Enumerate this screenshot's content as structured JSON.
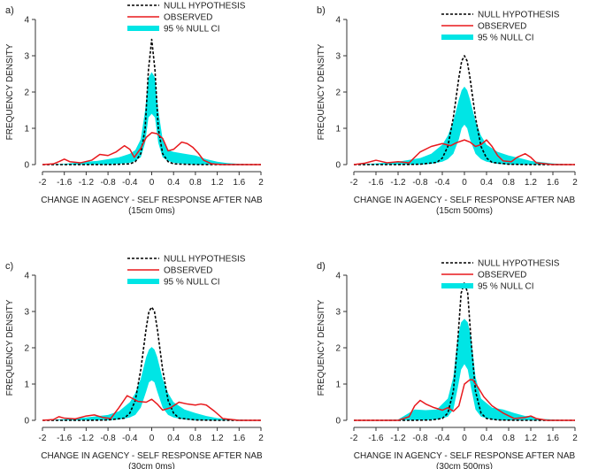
{
  "chart_data": [
    {
      "type": "line",
      "panel_label": "a)",
      "xlabel": "CHANGE IN AGENCY - SELF RESPONSE AFTER NAB",
      "xlabel2": "(15cm 0ms)",
      "ylabel": "FREQUENCY DENSITY",
      "xlim": [
        -2,
        2
      ],
      "ylim": [
        0,
        4
      ],
      "x_ticks": [
        "-2",
        "-1.6",
        "-1.2",
        "-0.8",
        "-0.4",
        "0",
        "0.4",
        "0.8",
        "1.2",
        "1.6",
        "2"
      ],
      "y_ticks": [
        "0",
        "1",
        "2",
        "3",
        "4"
      ],
      "legend": [
        "NULL HYPOTHESIS",
        "OBSERVED",
        "95 % NULL CI"
      ],
      "series": [
        {
          "name": "NULL HYPOTHESIS",
          "color": "#000000",
          "style": "dashed",
          "x": [
            -2,
            -1.6,
            -0.8,
            -0.4,
            -0.3,
            -0.2,
            -0.12,
            -0.06,
            0,
            0.06,
            0.12,
            0.2,
            0.3,
            0.4,
            0.8,
            1.6,
            2
          ],
          "y": [
            0,
            0,
            0,
            0.02,
            0.08,
            0.3,
            1.0,
            2.6,
            3.45,
            2.6,
            1.0,
            0.3,
            0.08,
            0.02,
            0,
            0,
            0
          ]
        },
        {
          "name": "OBSERVED",
          "color": "#e8181c",
          "style": "solid",
          "x": [
            -2,
            -1.8,
            -1.7,
            -1.6,
            -1.5,
            -1.3,
            -1.1,
            -0.95,
            -0.8,
            -0.65,
            -0.5,
            -0.4,
            -0.32,
            -0.2,
            -0.1,
            0,
            0.1,
            0.2,
            0.3,
            0.4,
            0.55,
            0.65,
            0.75,
            0.85,
            0.95,
            1.1,
            1.3,
            1.6,
            2
          ],
          "y": [
            0,
            0.02,
            0.08,
            0.15,
            0.08,
            0.05,
            0.12,
            0.28,
            0.25,
            0.35,
            0.52,
            0.42,
            0.2,
            0.45,
            0.75,
            0.88,
            0.85,
            0.72,
            0.38,
            0.42,
            0.62,
            0.58,
            0.48,
            0.32,
            0.12,
            0.02,
            0,
            0,
            0
          ]
        },
        {
          "name": "95 % NULL CI",
          "color": "#00e5e5",
          "style": "band",
          "x": [
            -2,
            -1.6,
            -1.4,
            -1.2,
            -1.0,
            -0.8,
            -0.6,
            -0.4,
            -0.3,
            -0.2,
            -0.12,
            -0.06,
            0,
            0.06,
            0.12,
            0.2,
            0.3,
            0.4,
            0.6,
            0.8,
            1.0,
            1.2,
            1.4,
            1.6,
            2
          ],
          "lower": [
            0,
            0,
            0,
            0,
            0,
            0,
            0.02,
            0.05,
            0.1,
            0.2,
            0.6,
            1.3,
            1.4,
            1.3,
            0.6,
            0.2,
            0.1,
            0.05,
            0.02,
            0,
            0,
            0,
            0,
            0,
            0
          ],
          "upper": [
            0,
            0.02,
            0.05,
            0.08,
            0.1,
            0.15,
            0.2,
            0.3,
            0.4,
            0.7,
            1.5,
            2.4,
            2.55,
            2.4,
            1.5,
            0.7,
            0.4,
            0.35,
            0.3,
            0.25,
            0.15,
            0.08,
            0.04,
            0.02,
            0
          ]
        }
      ]
    },
    {
      "type": "line",
      "panel_label": "b)",
      "xlabel": "CHANGE IN AGENCY - SELF RESPONSE AFTER NAB",
      "xlabel2": "(15cm 500ms)",
      "ylabel": "FREQUENCY DENSITY",
      "xlim": [
        -2,
        2
      ],
      "ylim": [
        0,
        4
      ],
      "x_ticks": [
        "-2",
        "-1.6",
        "-1.2",
        "-0.8",
        "-0.4",
        "0",
        "0.4",
        "0.8",
        "1.2",
        "1.6",
        "2"
      ],
      "y_ticks": [
        "0",
        "1",
        "2",
        "3",
        "4"
      ],
      "legend": [
        "NULL HYPOTHESIS",
        "OBSERVED",
        "95 % NULL CI"
      ],
      "series": [
        {
          "name": "NULL HYPOTHESIS",
          "color": "#000000",
          "style": "dashed",
          "x": [
            -2,
            -1.2,
            -0.8,
            -0.5,
            -0.4,
            -0.3,
            -0.2,
            -0.1,
            -0.05,
            0,
            0.05,
            0.1,
            0.2,
            0.3,
            0.4,
            0.5,
            0.8,
            1.2,
            2
          ],
          "y": [
            0,
            0,
            0.01,
            0.06,
            0.18,
            0.5,
            1.3,
            2.4,
            2.85,
            3.0,
            2.85,
            2.4,
            1.3,
            0.5,
            0.18,
            0.06,
            0.01,
            0,
            0
          ]
        },
        {
          "name": "OBSERVED",
          "color": "#e8181c",
          "style": "solid",
          "x": [
            -2,
            -1.8,
            -1.6,
            -1.4,
            -1.2,
            -1.0,
            -0.8,
            -0.6,
            -0.4,
            -0.25,
            -0.15,
            0,
            0.1,
            0.2,
            0.3,
            0.4,
            0.5,
            0.6,
            0.7,
            0.85,
            0.95,
            1.1,
            1.2,
            1.3,
            1.6,
            2
          ],
          "y": [
            0,
            0.04,
            0.12,
            0.05,
            0.08,
            0.05,
            0.35,
            0.5,
            0.58,
            0.52,
            0.6,
            0.68,
            0.62,
            0.5,
            0.55,
            0.68,
            0.5,
            0.25,
            0.1,
            0.08,
            0.2,
            0.3,
            0.2,
            0.05,
            0,
            0
          ]
        },
        {
          "name": "95 % NULL CI",
          "color": "#00e5e5",
          "style": "band",
          "x": [
            -2,
            -1.6,
            -1.2,
            -0.8,
            -0.6,
            -0.4,
            -0.3,
            -0.2,
            -0.1,
            -0.05,
            0,
            0.05,
            0.1,
            0.2,
            0.3,
            0.4,
            0.6,
            0.8,
            1.0,
            1.2,
            1.6,
            2
          ],
          "lower": [
            0,
            0,
            0,
            0,
            0.02,
            0.08,
            0.15,
            0.3,
            0.7,
            1.0,
            1.1,
            1.0,
            0.7,
            0.3,
            0.15,
            0.08,
            0.02,
            0,
            0,
            0,
            0,
            0
          ],
          "upper": [
            0,
            0.03,
            0.08,
            0.18,
            0.3,
            0.55,
            0.8,
            1.2,
            1.8,
            2.05,
            2.15,
            2.05,
            1.8,
            1.2,
            0.8,
            0.55,
            0.35,
            0.25,
            0.18,
            0.1,
            0.03,
            0
          ]
        }
      ]
    },
    {
      "type": "line",
      "panel_label": "c)",
      "xlabel": "CHANGE IN AGENCY - SELF RESPONSE AFTER NAB",
      "xlabel2": "(30cm 0ms)",
      "ylabel": "FREQUENCY DENSITY",
      "xlim": [
        -2,
        2
      ],
      "ylim": [
        0,
        4
      ],
      "x_ticks": [
        "-2",
        "-1.6",
        "-1.2",
        "-0.8",
        "-0.4",
        "0",
        "0.4",
        "0.8",
        "1.2",
        "1.6",
        "2"
      ],
      "y_ticks": [
        "0",
        "1",
        "2",
        "3",
        "4"
      ],
      "legend": [
        "NULL HYPOTHESIS",
        "OBSERVED",
        "95 % NULL CI"
      ],
      "series": [
        {
          "name": "NULL HYPOTHESIS",
          "color": "#000000",
          "style": "dashed",
          "x": [
            -2,
            -1.2,
            -0.8,
            -0.5,
            -0.4,
            -0.3,
            -0.2,
            -0.1,
            -0.05,
            0,
            0.05,
            0.1,
            0.2,
            0.3,
            0.4,
            0.5,
            0.8,
            1.2,
            2
          ],
          "y": [
            0,
            0,
            0.01,
            0.06,
            0.2,
            0.55,
            1.4,
            2.55,
            3.0,
            3.12,
            3.0,
            2.55,
            1.4,
            0.55,
            0.2,
            0.06,
            0.01,
            0,
            0
          ]
        },
        {
          "name": "OBSERVED",
          "color": "#e8181c",
          "style": "solid",
          "x": [
            -2,
            -1.8,
            -1.7,
            -1.6,
            -1.4,
            -1.2,
            -1.05,
            -0.9,
            -0.75,
            -0.6,
            -0.45,
            -0.35,
            -0.25,
            -0.1,
            0,
            0.1,
            0.2,
            0.35,
            0.5,
            0.65,
            0.8,
            0.9,
            1.0,
            1.15,
            1.3,
            1.6,
            2
          ],
          "y": [
            0,
            0.02,
            0.1,
            0.06,
            0.04,
            0.12,
            0.15,
            0.08,
            0.05,
            0.35,
            0.68,
            0.6,
            0.52,
            0.5,
            0.58,
            0.45,
            0.28,
            0.35,
            0.5,
            0.45,
            0.42,
            0.45,
            0.42,
            0.25,
            0.05,
            0,
            0
          ]
        },
        {
          "name": "95 % NULL CI",
          "color": "#00e5e5",
          "style": "band",
          "x": [
            -2,
            -1.6,
            -1.2,
            -0.8,
            -0.6,
            -0.4,
            -0.3,
            -0.2,
            -0.1,
            -0.05,
            0,
            0.05,
            0.1,
            0.2,
            0.3,
            0.4,
            0.6,
            0.8,
            1.0,
            1.2,
            1.6,
            2
          ],
          "lower": [
            0,
            0,
            0,
            0,
            0.02,
            0.08,
            0.15,
            0.35,
            0.8,
            1.05,
            1.1,
            1.05,
            0.8,
            0.35,
            0.15,
            0.08,
            0.02,
            0,
            0,
            0,
            0,
            0
          ],
          "upper": [
            0,
            0.03,
            0.08,
            0.15,
            0.25,
            0.5,
            0.75,
            1.15,
            1.75,
            1.95,
            2.02,
            1.95,
            1.75,
            1.15,
            0.75,
            0.5,
            0.3,
            0.2,
            0.12,
            0.06,
            0.02,
            0
          ]
        }
      ]
    },
    {
      "type": "line",
      "panel_label": "d)",
      "xlabel": "CHANGE IN AGENCY - SELF RESPONSE AFTER NAB",
      "xlabel2": "(30cm 500ms)",
      "ylabel": "FREQUENCY DENSITY",
      "xlim": [
        -2,
        2
      ],
      "ylim": [
        0,
        4
      ],
      "x_ticks": [
        "-2",
        "-1.6",
        "-1.2",
        "-0.8",
        "-0.4",
        "0",
        "0.4",
        "0.8",
        "1.2",
        "1.6",
        "2"
      ],
      "y_ticks": [
        "0",
        "1",
        "2",
        "3",
        "4"
      ],
      "legend": [
        "NULL HYPOTHESIS",
        "OBSERVED",
        "95 % NULL CI"
      ],
      "series": [
        {
          "name": "NULL HYPOTHESIS",
          "color": "#000000",
          "style": "dashed",
          "x": [
            -2,
            -1.0,
            -0.6,
            -0.4,
            -0.3,
            -0.2,
            -0.12,
            -0.06,
            0,
            0.06,
            0.12,
            0.2,
            0.3,
            0.4,
            0.6,
            1.0,
            2
          ],
          "y": [
            0,
            0,
            0.01,
            0.05,
            0.2,
            0.8,
            2.2,
            3.5,
            3.8,
            3.5,
            2.2,
            0.8,
            0.2,
            0.05,
            0.01,
            0,
            0
          ]
        },
        {
          "name": "OBSERVED",
          "color": "#e8181c",
          "style": "solid",
          "x": [
            -2,
            -1.2,
            -1.0,
            -0.9,
            -0.8,
            -0.7,
            -0.55,
            -0.4,
            -0.3,
            -0.2,
            -0.1,
            0,
            0.1,
            0.15,
            0.25,
            0.35,
            0.5,
            0.7,
            0.9,
            1.1,
            1.2,
            1.3,
            1.5,
            2
          ],
          "y": [
            0,
            0,
            0.1,
            0.4,
            0.55,
            0.45,
            0.35,
            0.28,
            0.35,
            0.25,
            0.4,
            1.0,
            1.12,
            1.12,
            0.9,
            0.65,
            0.4,
            0.2,
            0.05,
            0.08,
            0.12,
            0.05,
            0,
            0
          ]
        },
        {
          "name": "95 % NULL CI",
          "color": "#00e5e5",
          "style": "band",
          "x": [
            -2,
            -1.2,
            -0.9,
            -0.7,
            -0.5,
            -0.3,
            -0.2,
            -0.12,
            -0.06,
            0,
            0.06,
            0.12,
            0.2,
            0.3,
            0.5,
            0.7,
            0.9,
            1.1,
            1.2,
            1.3,
            1.6,
            2
          ],
          "lower": [
            0,
            0,
            0,
            0,
            0.02,
            0.1,
            0.3,
            0.9,
            1.4,
            1.55,
            1.4,
            0.9,
            0.3,
            0.1,
            0.02,
            0,
            0,
            0,
            0,
            0,
            0,
            0
          ],
          "upper": [
            0,
            0.02,
            0.3,
            0.28,
            0.3,
            0.6,
            1.2,
            2.3,
            2.7,
            2.8,
            2.7,
            2.3,
            1.2,
            0.6,
            0.35,
            0.3,
            0.2,
            0.12,
            0.12,
            0.05,
            0.02,
            0
          ]
        }
      ]
    }
  ]
}
